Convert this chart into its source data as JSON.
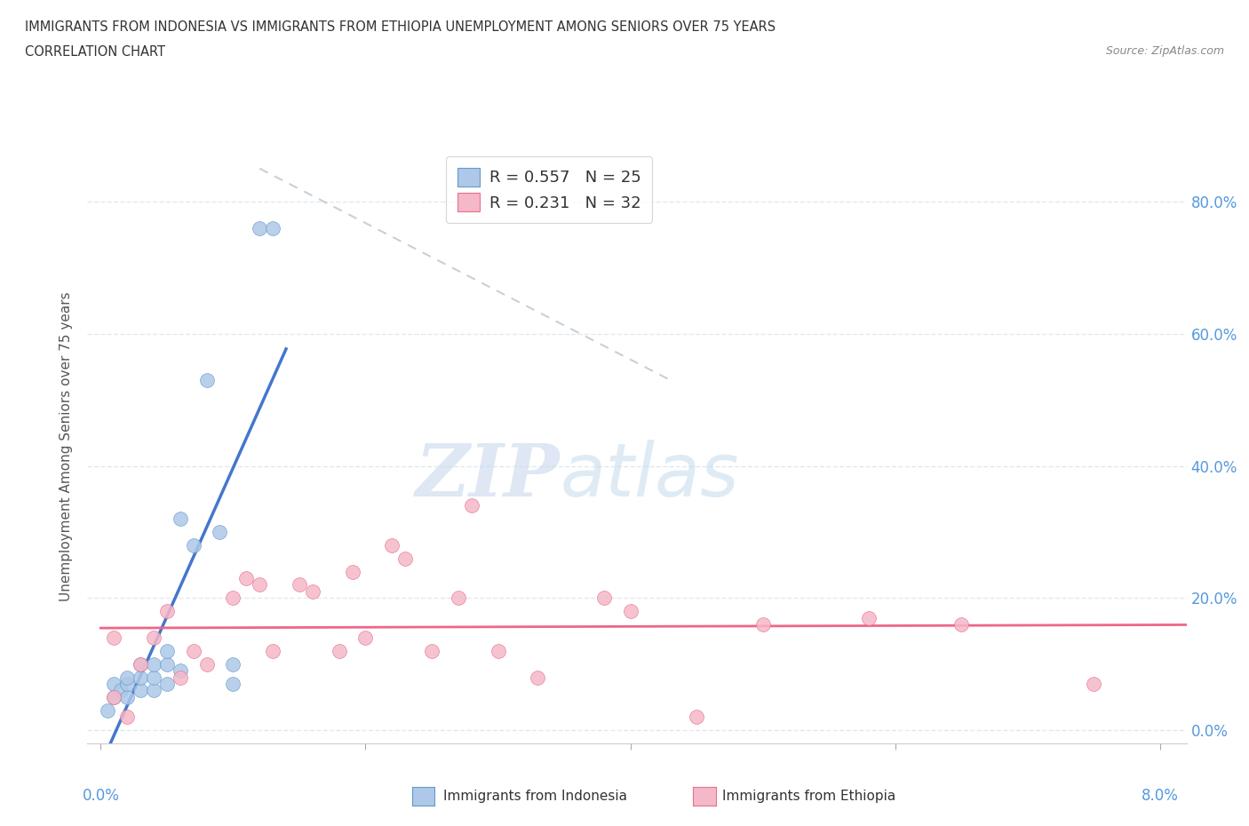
{
  "title_line1": "IMMIGRANTS FROM INDONESIA VS IMMIGRANTS FROM ETHIOPIA UNEMPLOYMENT AMONG SENIORS OVER 75 YEARS",
  "title_line2": "CORRELATION CHART",
  "source": "Source: ZipAtlas.com",
  "ylabel": "Unemployment Among Seniors over 75 years",
  "watermark_zip": "ZIP",
  "watermark_atlas": "atlas",
  "legend_r_indonesia": "R = 0.557",
  "legend_n_indonesia": "N = 25",
  "legend_r_ethiopia": "R = 0.231",
  "legend_n_ethiopia": "N = 32",
  "color_indonesia": "#adc8e8",
  "color_ethiopia": "#f5b8c8",
  "color_indonesia_edge": "#6699cc",
  "color_ethiopia_edge": "#e8708a",
  "line_indonesia": "#4477cc",
  "line_ethiopia": "#ee6688",
  "trendline_dashed_color": "#c0c8d0",
  "background": "#ffffff",
  "grid_color": "#dde8f0",
  "ytick_color": "#5599dd",
  "xtick_color": "#5599dd",
  "ytick_values": [
    0.0,
    0.2,
    0.4,
    0.6,
    0.8
  ],
  "ytick_labels": [
    "0.0%",
    "20.0%",
    "40.0%",
    "60.0%",
    "80.0%"
  ],
  "xtick_values": [
    0.0,
    0.08
  ],
  "xtick_labels": [
    "0.0%",
    "8.0%"
  ],
  "xlim": [
    -0.001,
    0.082
  ],
  "ylim": [
    -0.02,
    0.88
  ],
  "indonesia_x": [
    0.0005,
    0.001,
    0.001,
    0.0015,
    0.002,
    0.002,
    0.002,
    0.003,
    0.003,
    0.003,
    0.004,
    0.004,
    0.004,
    0.005,
    0.005,
    0.005,
    0.006,
    0.006,
    0.007,
    0.008,
    0.009,
    0.01,
    0.01,
    0.012,
    0.013
  ],
  "indonesia_y": [
    0.03,
    0.05,
    0.07,
    0.06,
    0.05,
    0.07,
    0.08,
    0.06,
    0.08,
    0.1,
    0.06,
    0.08,
    0.1,
    0.07,
    0.1,
    0.12,
    0.09,
    0.32,
    0.28,
    0.53,
    0.3,
    0.07,
    0.1,
    0.76,
    0.76
  ],
  "ethiopia_x": [
    0.001,
    0.001,
    0.002,
    0.003,
    0.004,
    0.005,
    0.006,
    0.007,
    0.008,
    0.01,
    0.011,
    0.012,
    0.013,
    0.015,
    0.016,
    0.018,
    0.019,
    0.02,
    0.022,
    0.023,
    0.025,
    0.027,
    0.028,
    0.03,
    0.033,
    0.038,
    0.04,
    0.045,
    0.05,
    0.058,
    0.065,
    0.075
  ],
  "ethiopia_y": [
    0.05,
    0.14,
    0.02,
    0.1,
    0.14,
    0.18,
    0.08,
    0.12,
    0.1,
    0.2,
    0.23,
    0.22,
    0.12,
    0.22,
    0.21,
    0.12,
    0.24,
    0.14,
    0.28,
    0.26,
    0.12,
    0.2,
    0.34,
    0.12,
    0.08,
    0.2,
    0.18,
    0.02,
    0.16,
    0.17,
    0.16,
    0.07
  ],
  "dot_size": 130,
  "dot_linewidth": 0.5
}
